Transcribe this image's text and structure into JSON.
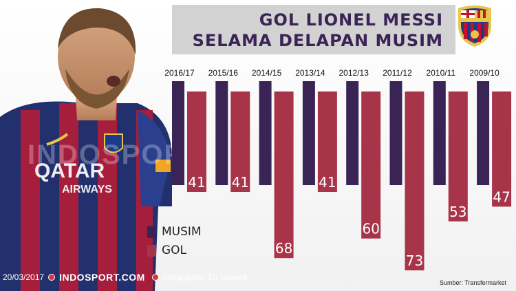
{
  "title": {
    "line1": "GOL LIONEL MESSI",
    "line2": "SELAMA DELAPAN MUSIM"
  },
  "colors": {
    "season_bar": "#3a2456",
    "goal_bar": "#a8344a",
    "title_text": "#3a2456"
  },
  "chart_data": {
    "type": "bar",
    "categories": [
      "2016/17",
      "2015/16",
      "2014/15",
      "2013/14",
      "2012/13",
      "2011/12",
      "2010/11",
      "2009/10"
    ],
    "series": [
      {
        "name": "GOL",
        "values": [
          41,
          41,
          68,
          41,
          60,
          73,
          53,
          47
        ]
      }
    ],
    "legend": {
      "items": [
        {
          "label": "MUSIM",
          "color": "#3a2456"
        },
        {
          "label": "GOL",
          "color": "#a8344a"
        }
      ],
      "position": "bottom-left"
    },
    "xlabel": "",
    "ylabel": "",
    "grid": false
  },
  "footer": {
    "date": "20/03/2017",
    "brand": "INDOSPORT.COM",
    "credit": "Infographic: Eli Suhaeli"
  },
  "source": "Sumber: Transfermarket",
  "watermark": "INDOSPORT"
}
